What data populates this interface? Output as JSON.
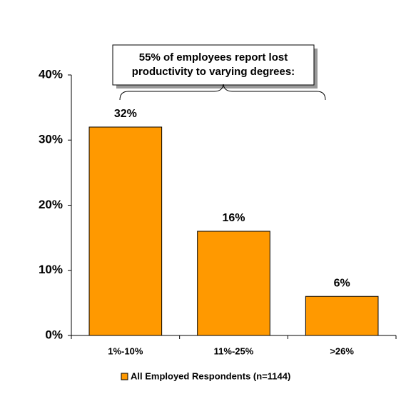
{
  "chart_data": {
    "type": "bar",
    "annotation": [
      "55% of employees report lost",
      "productivity to varying degrees:"
    ],
    "categories": [
      "1%-10%",
      "11%-25%",
      ">26%"
    ],
    "series": [
      {
        "name": "All Employed Respondents (n=1144)",
        "color": "#ff9900",
        "values": [
          32,
          16,
          6
        ],
        "value_labels": [
          "32%",
          "16%",
          "6%"
        ]
      }
    ],
    "ylim": [
      0,
      40
    ],
    "yticks": [
      {
        "value": 0,
        "label": "0%"
      },
      {
        "value": 10,
        "label": "10%"
      },
      {
        "value": 20,
        "label": "20%"
      },
      {
        "value": 30,
        "label": "30%"
      },
      {
        "value": 40,
        "label": "40%"
      }
    ],
    "legend": "bottom"
  }
}
